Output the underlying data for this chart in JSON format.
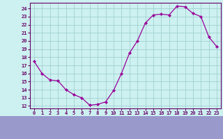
{
  "x": [
    0,
    1,
    2,
    3,
    4,
    5,
    6,
    7,
    8,
    9,
    10,
    11,
    12,
    13,
    14,
    15,
    16,
    17,
    18,
    19,
    20,
    21,
    22,
    23
  ],
  "y": [
    17.5,
    16.0,
    15.2,
    15.1,
    14.0,
    13.4,
    13.0,
    12.1,
    12.2,
    12.5,
    13.9,
    16.0,
    18.5,
    20.0,
    22.2,
    23.2,
    23.3,
    23.2,
    24.3,
    24.2,
    23.4,
    23.0,
    20.5,
    19.3
  ],
  "line_color": "#990099",
  "marker_color": "#990099",
  "bg_color": "#cdf0f0",
  "grid_color": "#99cccc",
  "xlim": [
    -0.5,
    23.5
  ],
  "ylim": [
    11.7,
    24.7
  ],
  "yticks": [
    12,
    13,
    14,
    15,
    16,
    17,
    18,
    19,
    20,
    21,
    22,
    23,
    24
  ],
  "xticks": [
    0,
    1,
    2,
    3,
    4,
    5,
    6,
    7,
    8,
    9,
    10,
    11,
    12,
    13,
    14,
    15,
    16,
    17,
    18,
    19,
    20,
    21,
    22,
    23
  ],
  "axis_color": "#660066",
  "spine_color": "#660066",
  "bottom_bg": "#9999cc"
}
